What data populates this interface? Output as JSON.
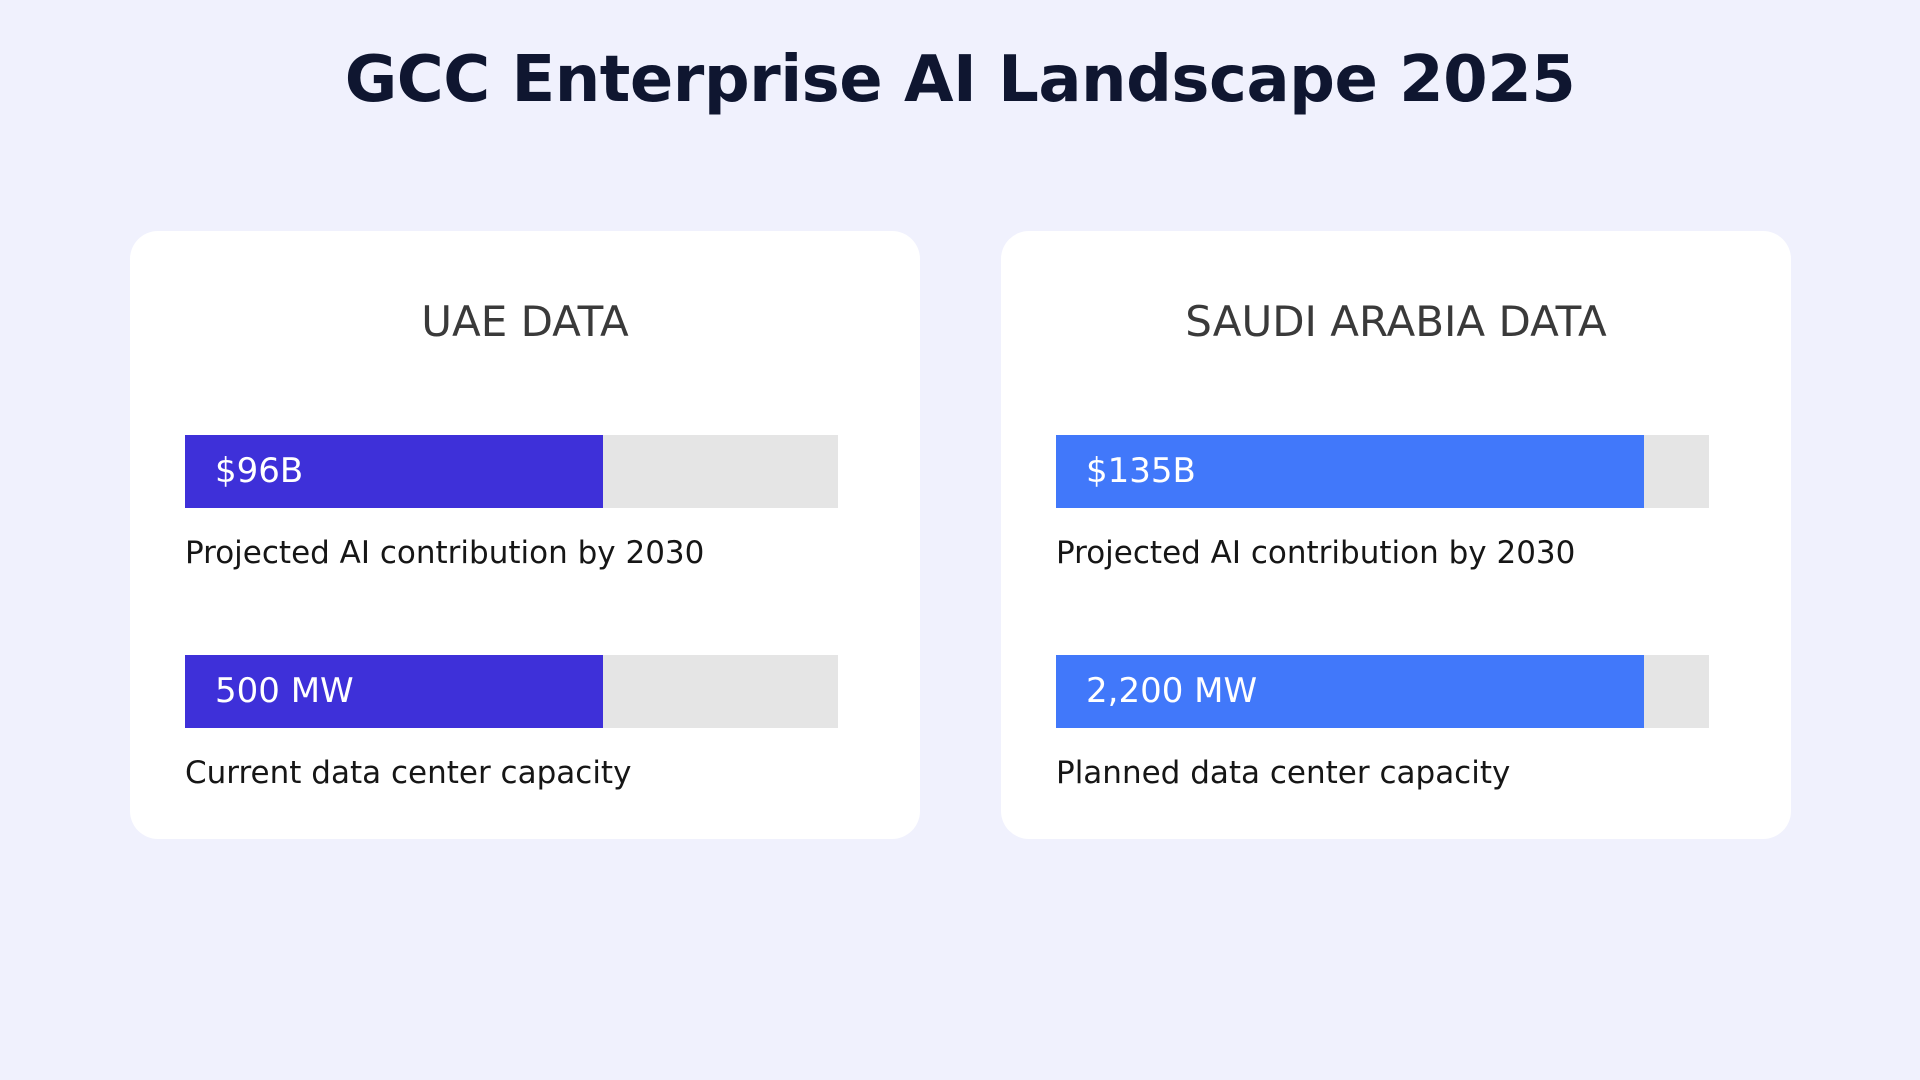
{
  "title": "GCC Enterprise AI Landscape 2025",
  "colors": {
    "background": "#f0f1fd",
    "track": "#e5e5e5",
    "uae_bar": "#3e30d9",
    "saudi_bar": "#4178fa"
  },
  "cards": [
    {
      "heading": "UAE DATA",
      "color": "#3e30d9",
      "metrics": [
        {
          "value_label": "$96B",
          "description": "Projected AI contribution by 2030",
          "fill_fraction": 0.64
        },
        {
          "value_label": "500 MW",
          "description": "Current data center capacity",
          "fill_fraction": 0.64
        }
      ]
    },
    {
      "heading": "SAUDI ARABIA DATA",
      "color": "#4178fa",
      "metrics": [
        {
          "value_label": "$135B",
          "description": "Projected AI contribution by 2030",
          "fill_fraction": 0.9
        },
        {
          "value_label": "2,200 MW",
          "description": "Planned data center capacity",
          "fill_fraction": 0.9
        }
      ]
    }
  ],
  "chart_data": {
    "type": "bar",
    "title": "GCC Enterprise AI Landscape 2025",
    "groups": [
      "UAE DATA",
      "SAUDI ARABIA DATA"
    ],
    "series": [
      {
        "name": "Projected AI contribution by 2030",
        "labels": [
          "$96B",
          "$135B"
        ],
        "values": [
          96,
          135
        ],
        "fill_fraction": [
          0.64,
          0.9
        ]
      },
      {
        "name": "Current data center capacity",
        "labels": [
          "500 MW"
        ],
        "values": [
          500
        ],
        "fill_fraction": [
          0.64
        ]
      },
      {
        "name": "Planned data center capacity",
        "labels": [
          "2,200 MW"
        ],
        "values": [
          2200
        ],
        "fill_fraction": [
          0.9
        ]
      }
    ]
  }
}
